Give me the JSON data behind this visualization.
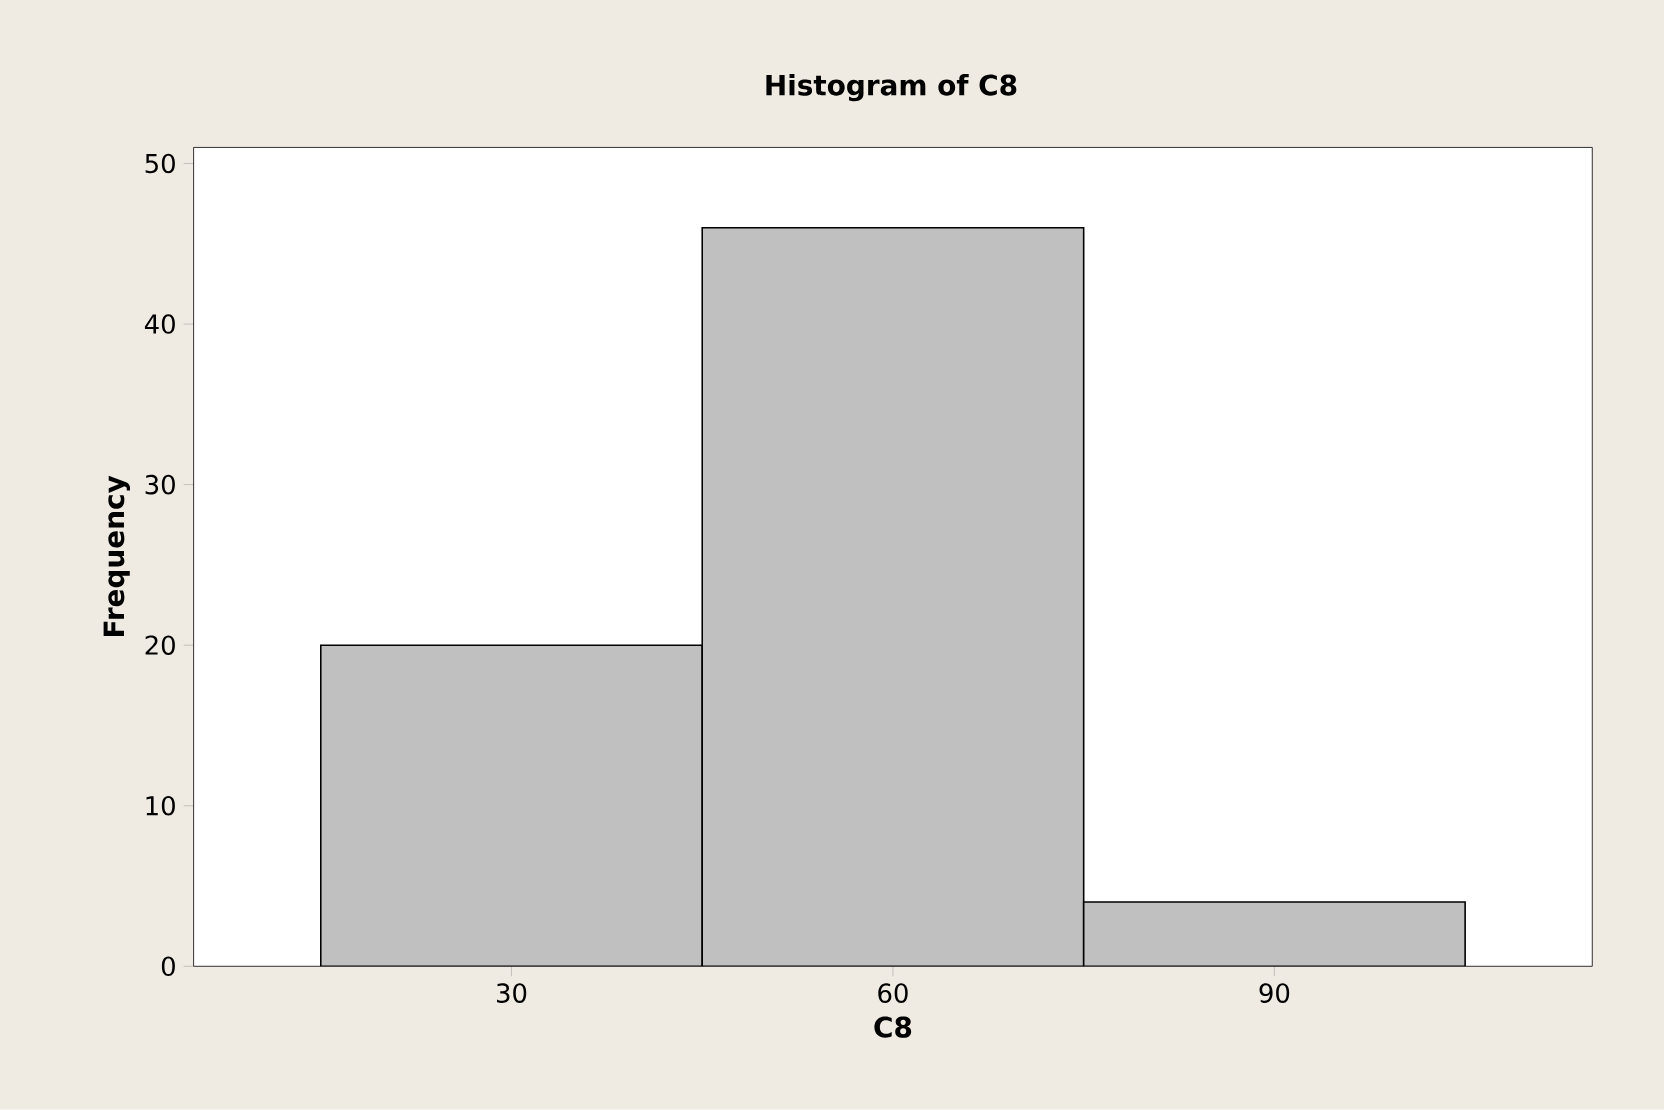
{
  "chart_data": {
    "type": "histogram",
    "title": "Histogram of C8",
    "xlabel": "C8",
    "ylabel": "Frequency",
    "bins": [
      15,
      45,
      75,
      105
    ],
    "values": [
      20,
      46,
      4
    ],
    "color": "#c0c0c0",
    "xlim": [
      5,
      115
    ],
    "xticks": [
      30,
      60,
      90
    ],
    "ylim": [
      0,
      51
    ],
    "yticks": [
      0,
      10,
      20,
      30,
      40,
      50
    ],
    "grid": false
  }
}
